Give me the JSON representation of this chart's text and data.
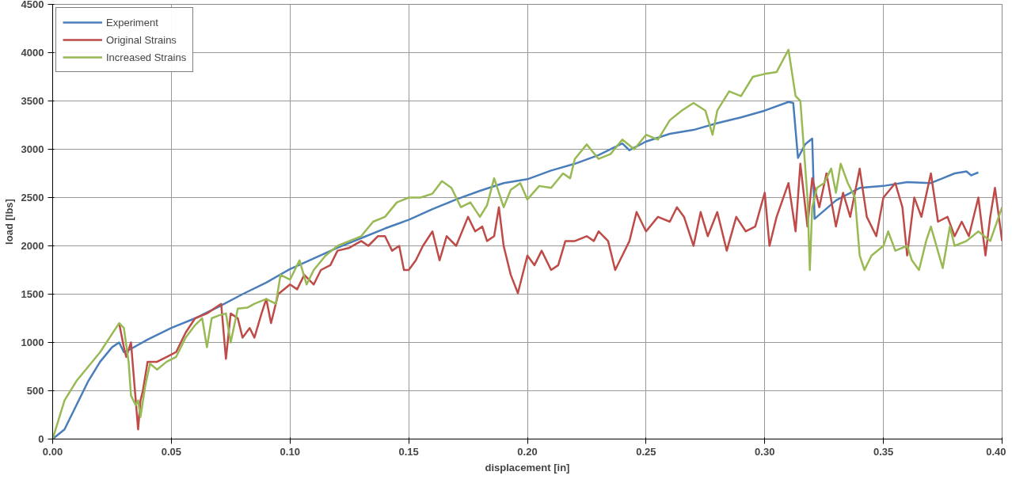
{
  "chart_data": {
    "type": "line",
    "xlabel": "displacement [in]",
    "ylabel": "load [lbs]",
    "xlim": [
      0,
      0.4
    ],
    "ylim": [
      0,
      4500
    ],
    "xticks": [
      {
        "value": 0,
        "label": "0.00"
      },
      {
        "value": 0.05,
        "label": "0.05"
      },
      {
        "value": 0.1,
        "label": "0.10"
      },
      {
        "value": 0.15,
        "label": "0.15"
      },
      {
        "value": 0.2,
        "label": "0.20"
      },
      {
        "value": 0.25,
        "label": "0.25"
      },
      {
        "value": 0.3,
        "label": "0.30"
      },
      {
        "value": 0.35,
        "label": "0.35"
      },
      {
        "value": 0.4,
        "label": "0.40"
      }
    ],
    "yticks": [
      0,
      500,
      1000,
      1500,
      2000,
      2500,
      3000,
      3500,
      4000,
      4500
    ],
    "grid": true,
    "legend": "top left",
    "marker": "none",
    "line_style": "solid",
    "series": [
      {
        "name": "Experiment",
        "color": "#4a7ebb",
        "x": [
          0,
          0.005,
          0.01,
          0.015,
          0.02,
          0.025,
          0.028,
          0.03,
          0.032,
          0.04,
          0.05,
          0.06,
          0.07,
          0.08,
          0.09,
          0.1,
          0.11,
          0.12,
          0.13,
          0.14,
          0.15,
          0.16,
          0.17,
          0.18,
          0.19,
          0.2,
          0.21,
          0.22,
          0.23,
          0.24,
          0.243,
          0.25,
          0.26,
          0.27,
          0.28,
          0.29,
          0.3,
          0.31,
          0.312,
          0.314,
          0.317,
          0.32,
          0.321,
          0.33,
          0.34,
          0.35,
          0.36,
          0.37,
          0.375,
          0.38,
          0.385,
          0.387,
          0.39
        ],
        "values": [
          0,
          100,
          350,
          600,
          800,
          950,
          1000,
          900,
          920,
          1030,
          1150,
          1250,
          1370,
          1500,
          1620,
          1760,
          1870,
          1980,
          2080,
          2180,
          2270,
          2380,
          2480,
          2570,
          2650,
          2690,
          2780,
          2850,
          2940,
          3060,
          2990,
          3080,
          3160,
          3200,
          3270,
          3330,
          3400,
          3490,
          3480,
          2910,
          3050,
          3110,
          2280,
          2470,
          2600,
          2620,
          2660,
          2650,
          2700,
          2750,
          2770,
          2730,
          2760
        ]
      },
      {
        "name": "Original Strains",
        "color": "#be4b48",
        "x": [
          0.028,
          0.03,
          0.031,
          0.033,
          0.035,
          0.036,
          0.037,
          0.038,
          0.04,
          0.044,
          0.048,
          0.052,
          0.056,
          0.06,
          0.065,
          0.068,
          0.071,
          0.073,
          0.075,
          0.078,
          0.08,
          0.083,
          0.085,
          0.088,
          0.09,
          0.092,
          0.095,
          0.1,
          0.103,
          0.106,
          0.11,
          0.113,
          0.117,
          0.12,
          0.125,
          0.13,
          0.133,
          0.137,
          0.14,
          0.143,
          0.146,
          0.148,
          0.15,
          0.153,
          0.156,
          0.16,
          0.163,
          0.166,
          0.17,
          0.175,
          0.178,
          0.181,
          0.183,
          0.186,
          0.188,
          0.19,
          0.193,
          0.196,
          0.2,
          0.203,
          0.206,
          0.21,
          0.213,
          0.216,
          0.22,
          0.225,
          0.228,
          0.23,
          0.234,
          0.237,
          0.24,
          0.243,
          0.246,
          0.25,
          0.255,
          0.26,
          0.263,
          0.266,
          0.27,
          0.273,
          0.276,
          0.28,
          0.284,
          0.288,
          0.292,
          0.296,
          0.3,
          0.302,
          0.305,
          0.31,
          0.313,
          0.315,
          0.318,
          0.32,
          0.323,
          0.326,
          0.33,
          0.333,
          0.336,
          0.34,
          0.343,
          0.347,
          0.35,
          0.355,
          0.358,
          0.36,
          0.363,
          0.366,
          0.37,
          0.373,
          0.377,
          0.38,
          0.383,
          0.386,
          0.39,
          0.393,
          0.395,
          0.397,
          0.4
        ],
        "values": [
          1200,
          950,
          850,
          1000,
          400,
          100,
          400,
          500,
          800,
          800,
          850,
          900,
          1100,
          1250,
          1300,
          1350,
          1400,
          830,
          1300,
          1250,
          1050,
          1150,
          1050,
          1300,
          1450,
          1200,
          1500,
          1600,
          1550,
          1700,
          1600,
          1750,
          1800,
          1950,
          1980,
          2050,
          2000,
          2100,
          2100,
          1950,
          2000,
          1750,
          1750,
          1850,
          2000,
          2150,
          1850,
          2100,
          2000,
          2300,
          2150,
          2200,
          2050,
          2100,
          2400,
          2000,
          1700,
          1510,
          1900,
          1800,
          1950,
          1750,
          1800,
          2050,
          2050,
          2100,
          2050,
          2150,
          2050,
          1750,
          1900,
          2050,
          2350,
          2150,
          2300,
          2250,
          2400,
          2300,
          2000,
          2350,
          2100,
          2350,
          1950,
          2300,
          2150,
          2200,
          2550,
          2000,
          2300,
          2650,
          2150,
          2850,
          2200,
          2700,
          2400,
          2750,
          2200,
          2550,
          2300,
          2800,
          2300,
          2100,
          2500,
          2650,
          2400,
          1900,
          2500,
          2300,
          2750,
          2250,
          2300,
          2100,
          2250,
          2100,
          2500,
          1900,
          2300,
          2600,
          2050
        ]
      },
      {
        "name": "Increased Strains",
        "color": "#98b954",
        "x": [
          0,
          0.005,
          0.01,
          0.02,
          0.028,
          0.03,
          0.032,
          0.033,
          0.035,
          0.036,
          0.037,
          0.039,
          0.041,
          0.044,
          0.048,
          0.052,
          0.056,
          0.06,
          0.063,
          0.065,
          0.067,
          0.07,
          0.073,
          0.075,
          0.078,
          0.082,
          0.085,
          0.09,
          0.094,
          0.096,
          0.1,
          0.104,
          0.107,
          0.11,
          0.115,
          0.12,
          0.125,
          0.13,
          0.135,
          0.14,
          0.145,
          0.15,
          0.155,
          0.16,
          0.164,
          0.168,
          0.172,
          0.176,
          0.18,
          0.183,
          0.186,
          0.19,
          0.193,
          0.197,
          0.2,
          0.205,
          0.21,
          0.215,
          0.218,
          0.22,
          0.225,
          0.23,
          0.235,
          0.24,
          0.245,
          0.25,
          0.255,
          0.26,
          0.265,
          0.27,
          0.275,
          0.278,
          0.28,
          0.285,
          0.29,
          0.295,
          0.3,
          0.305,
          0.31,
          0.313,
          0.315,
          0.318,
          0.319,
          0.32,
          0.322,
          0.325,
          0.328,
          0.33,
          0.332,
          0.335,
          0.338,
          0.34,
          0.342,
          0.345,
          0.35,
          0.352,
          0.355,
          0.36,
          0.362,
          0.365,
          0.368,
          0.37,
          0.375,
          0.378,
          0.38,
          0.385,
          0.39,
          0.395,
          0.4
        ],
        "values": [
          0,
          400,
          600,
          900,
          1200,
          1150,
          800,
          450,
          350,
          400,
          230,
          550,
          780,
          720,
          800,
          850,
          1050,
          1180,
          1250,
          950,
          1250,
          1280,
          1300,
          1000,
          1350,
          1360,
          1400,
          1450,
          1400,
          1700,
          1650,
          1850,
          1600,
          1750,
          1900,
          2000,
          2050,
          2100,
          2250,
          2300,
          2450,
          2500,
          2500,
          2540,
          2670,
          2600,
          2400,
          2450,
          2300,
          2420,
          2700,
          2400,
          2580,
          2650,
          2480,
          2620,
          2600,
          2750,
          2700,
          2900,
          3050,
          2900,
          2950,
          3100,
          3000,
          3150,
          3100,
          3300,
          3400,
          3480,
          3400,
          3150,
          3400,
          3600,
          3550,
          3750,
          3780,
          3800,
          4030,
          3550,
          3500,
          2500,
          1750,
          2400,
          2600,
          2650,
          2800,
          2550,
          2850,
          2650,
          2500,
          1900,
          1750,
          1900,
          2000,
          2150,
          1950,
          2000,
          1850,
          1750,
          2050,
          2200,
          1770,
          2200,
          2000,
          2050,
          2150,
          2050,
          2400
        ]
      }
    ]
  }
}
